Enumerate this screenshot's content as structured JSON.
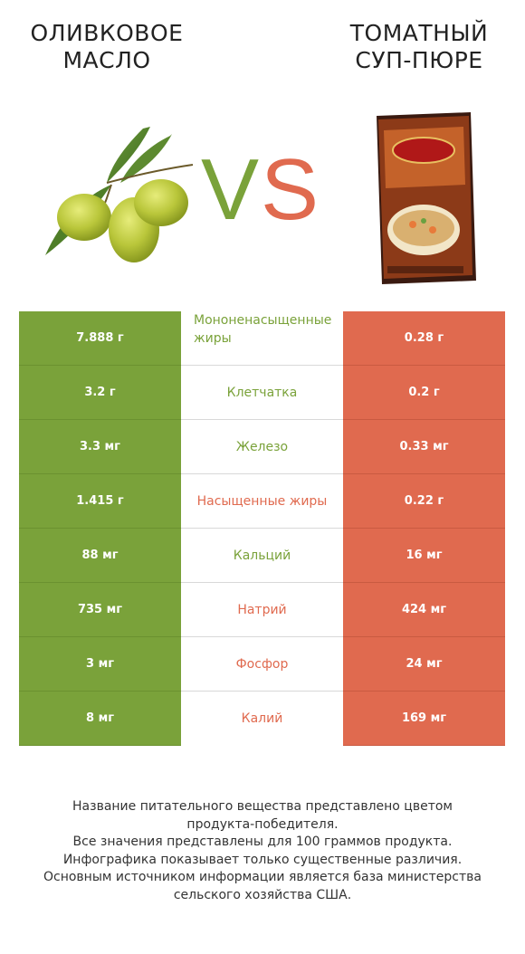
{
  "left_product": {
    "title": "Оливковое масло"
  },
  "right_product": {
    "title": "Томатный суп-пюре"
  },
  "vs": {
    "v": "V",
    "s": "S"
  },
  "colors": {
    "winner_left": "#7aa23a",
    "winner_right": "#e06a4f"
  },
  "chart_data": {
    "type": "table",
    "columns": [
      "Оливковое масло",
      "",
      "Томатный суп-пюре"
    ],
    "rows": [
      {
        "nutrient": "Мононенасыщенные жиры",
        "left": "7.888 г",
        "right": "0.28 г",
        "winner": "left"
      },
      {
        "nutrient": "Клетчатка",
        "left": "3.2 г",
        "right": "0.2 г",
        "winner": "left"
      },
      {
        "nutrient": "Железо",
        "left": "3.3 мг",
        "right": "0.33 мг",
        "winner": "left"
      },
      {
        "nutrient": "Насыщенные жиры",
        "left": "1.415 г",
        "right": "0.22 г",
        "winner": "right"
      },
      {
        "nutrient": "Кальций",
        "left": "88 мг",
        "right": "16 мг",
        "winner": "left"
      },
      {
        "nutrient": "Натрий",
        "left": "735 мг",
        "right": "424 мг",
        "winner": "right"
      },
      {
        "nutrient": "Фосфор",
        "left": "3 мг",
        "right": "24 мг",
        "winner": "right"
      },
      {
        "nutrient": "Калий",
        "left": "8 мг",
        "right": "169 мг",
        "winner": "right"
      }
    ]
  },
  "footer": {
    "line1": "Название питательного вещества представлено цветом",
    "line2": "продукта-победителя.",
    "line3": "Все значения представлены для 100 граммов продукта.",
    "line4": "Инфографика показывает только существенные различия.",
    "line5": "Основным источником информации является база министерства",
    "line6": "сельского хозяйства США."
  }
}
